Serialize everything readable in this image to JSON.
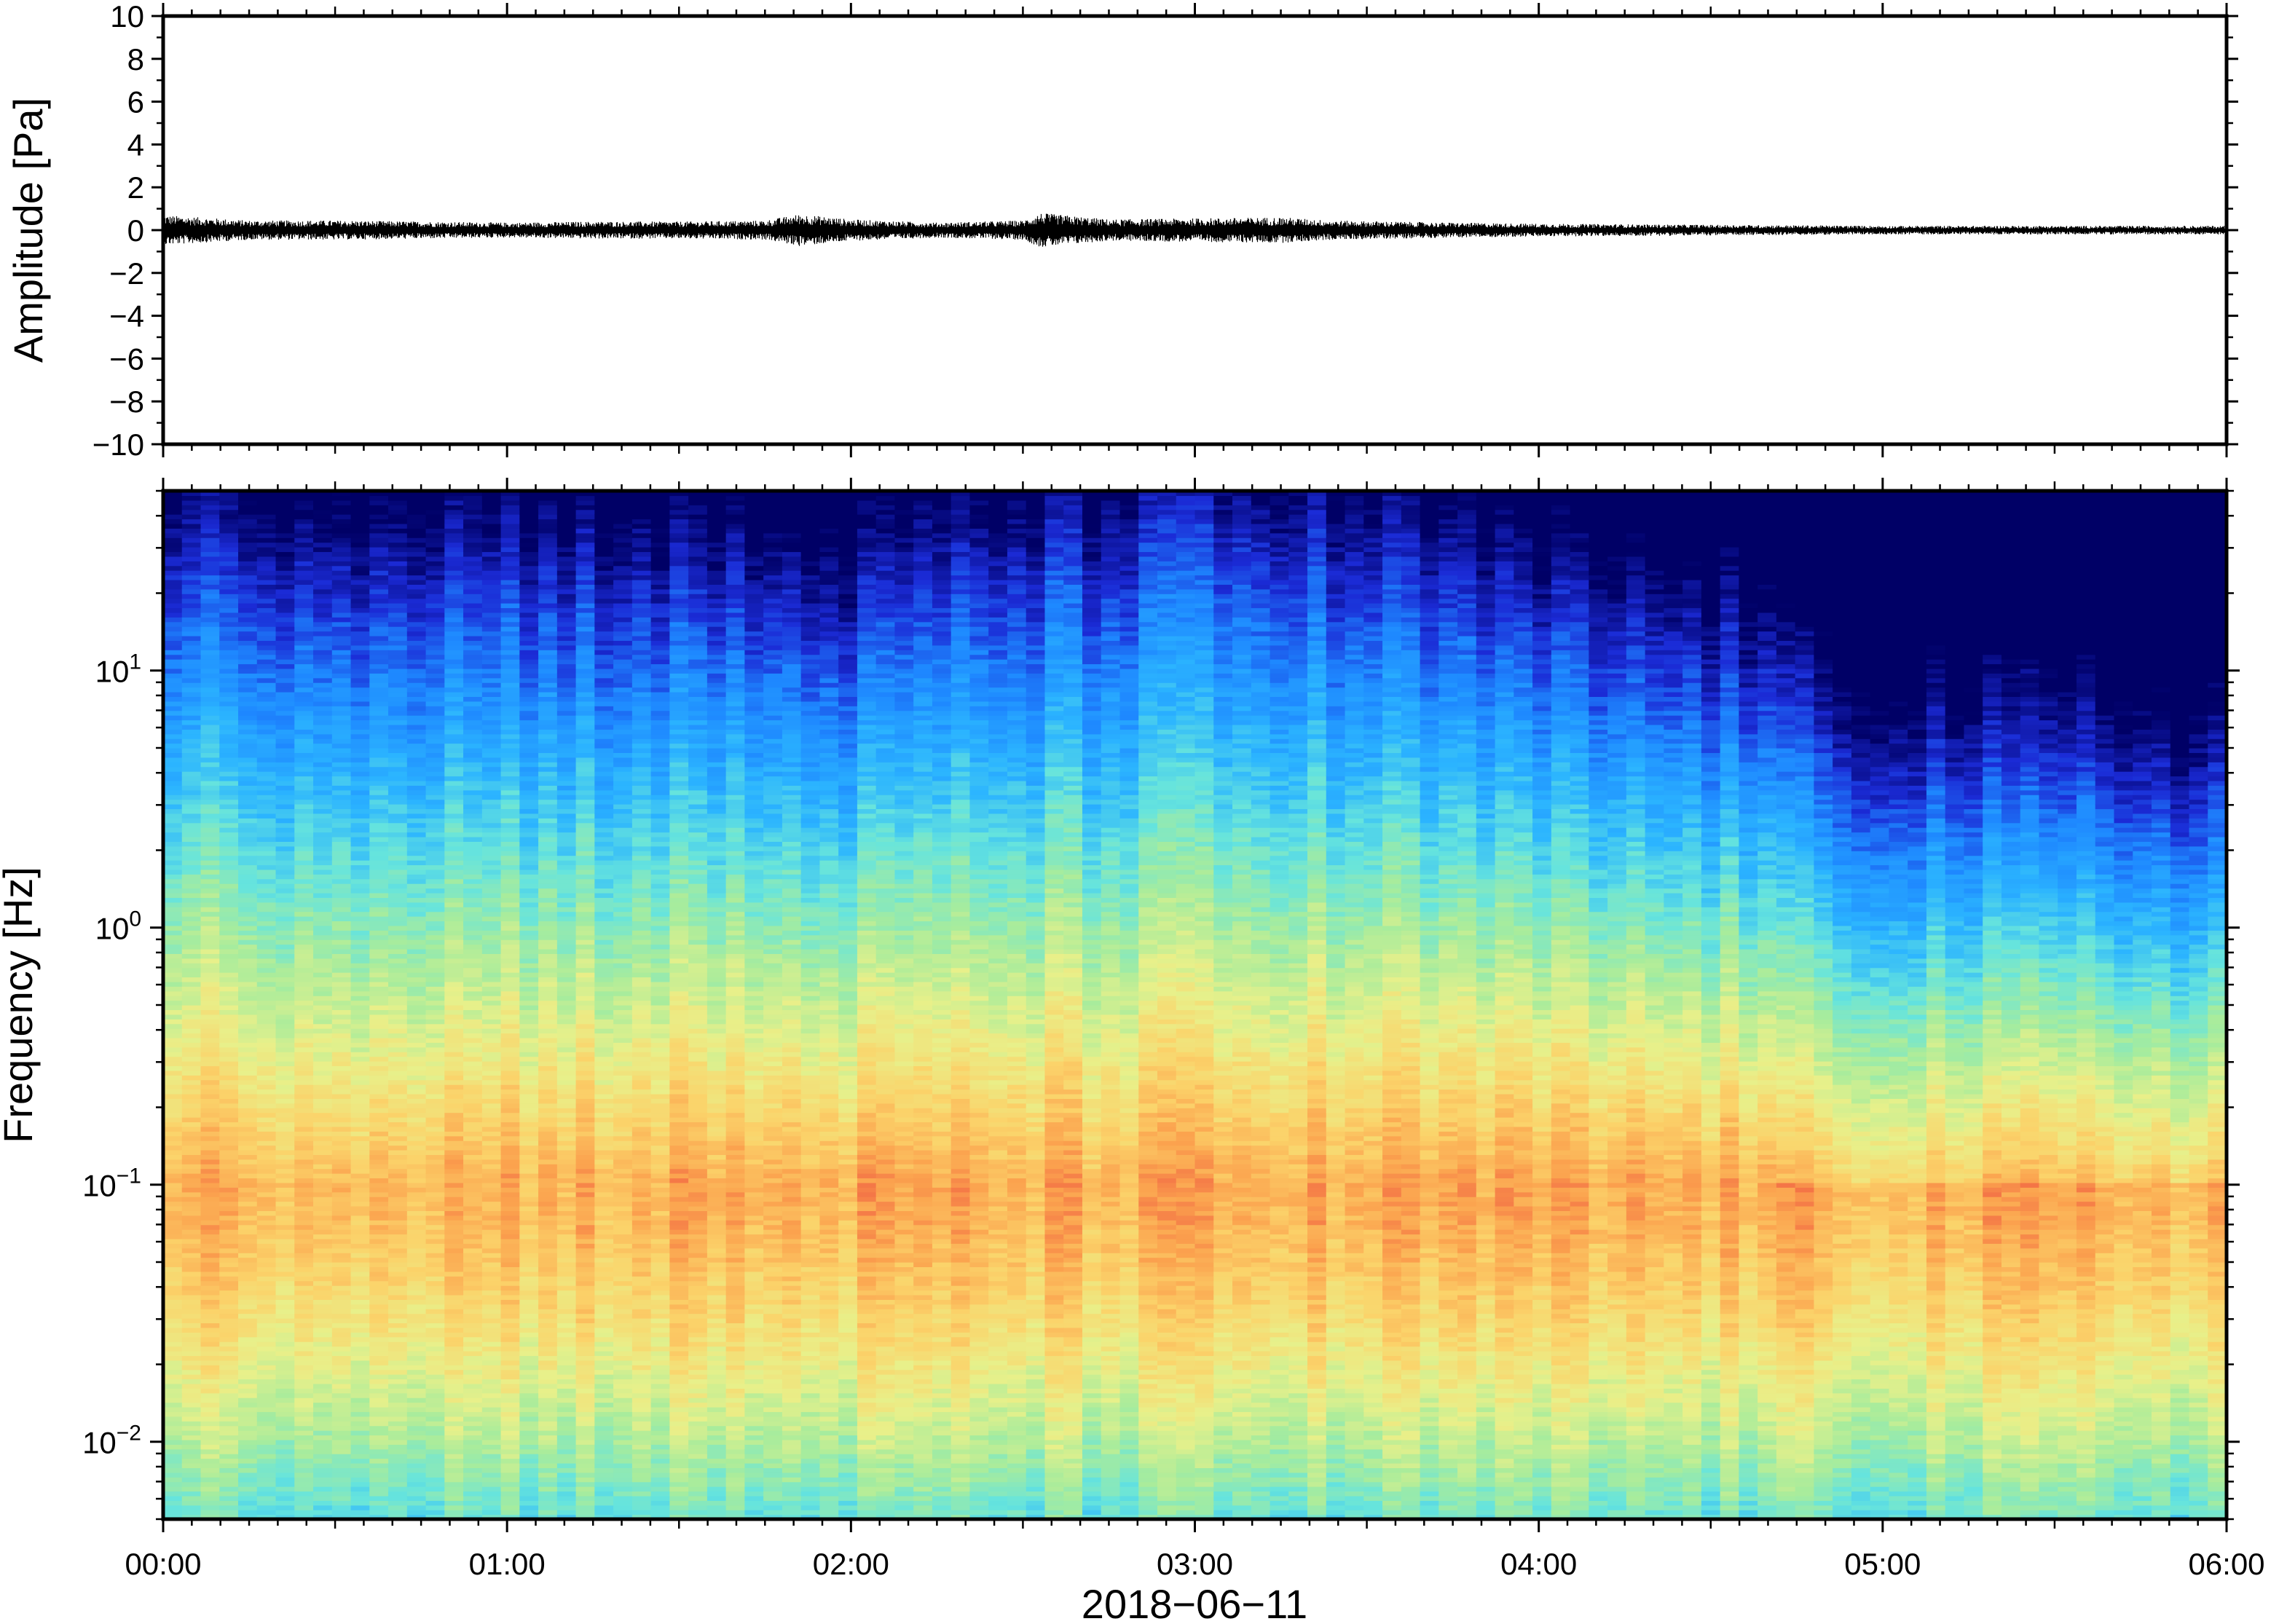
{
  "chart_data": [
    {
      "type": "line",
      "panel": "waveform",
      "ylabel": "Amplitude [Pa]",
      "ylim": [
        -10,
        10
      ],
      "yticks": [
        10,
        8,
        6,
        4,
        2,
        0,
        -2,
        -4,
        -6,
        -8,
        -10
      ],
      "ytick_labels": [
        "10",
        "8",
        "6",
        "4",
        "2",
        "0",
        "−2",
        "−4",
        "−6",
        "−8",
        "−10"
      ],
      "xlim": [
        "00:00",
        "06:00"
      ],
      "trace_color": "#000000",
      "envelope": {
        "x_hours": [
          0.0,
          0.25,
          0.5,
          0.75,
          1.0,
          1.25,
          1.5,
          1.75,
          1.85,
          2.0,
          2.25,
          2.5,
          2.55,
          2.75,
          3.0,
          3.25,
          3.4,
          3.75,
          4.0,
          4.5,
          5.0,
          5.5,
          6.0
        ],
        "amplitude_pa": [
          0.7,
          0.45,
          0.45,
          0.4,
          0.35,
          0.4,
          0.4,
          0.45,
          0.75,
          0.5,
          0.35,
          0.45,
          0.8,
          0.5,
          0.55,
          0.6,
          0.45,
          0.35,
          0.3,
          0.25,
          0.2,
          0.2,
          0.2
        ]
      }
    },
    {
      "type": "heatmap",
      "panel": "spectrogram",
      "ylabel": "Frequency [Hz]",
      "yscale": "log",
      "ylim": [
        0.005,
        50
      ],
      "yticks": [
        {
          "base": "10",
          "exp": "−2",
          "value": 0.01
        },
        {
          "base": "10",
          "exp": "−1",
          "value": 0.1
        },
        {
          "base": "10",
          "exp": "0",
          "value": 1
        },
        {
          "base": "10",
          "exp": "1",
          "value": 10
        }
      ],
      "xlabel": "2018−06−11",
      "xlim": [
        "00:00",
        "06:00"
      ],
      "xtick_labels": [
        "00:00",
        "01:00",
        "02:00",
        "03:00",
        "04:00",
        "05:00",
        "06:00"
      ],
      "colormap": [
        "#000066",
        "#1b2bd6",
        "#1e88ff",
        "#2bb4ff",
        "#66e4dd",
        "#a8ec9c",
        "#e8f08a",
        "#fbd36a",
        "#fba24e",
        "#ee5040"
      ],
      "energy_peak_hz": [
        0.05,
        0.2
      ],
      "high_frequency_cutoff_hz": {
        "x_hours": [
          0.0,
          1.0,
          2.0,
          3.0,
          4.0,
          4.7,
          5.0,
          6.0
        ],
        "hz": [
          20,
          18,
          12,
          25,
          11,
          7,
          5,
          4
        ]
      }
    }
  ]
}
